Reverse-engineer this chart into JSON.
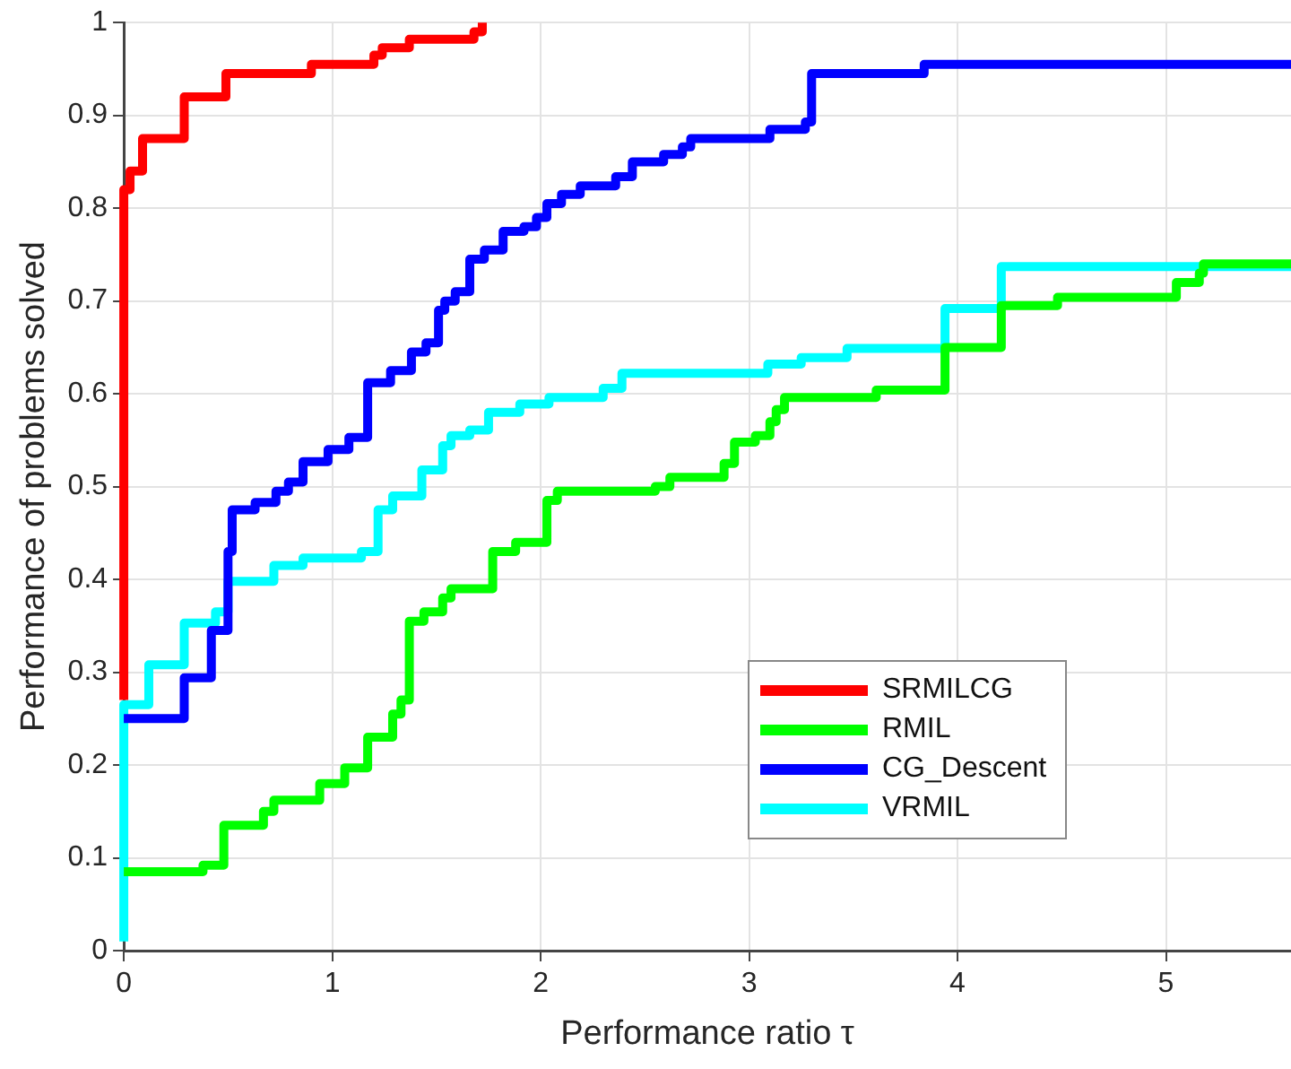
{
  "chart_data": {
    "type": "step",
    "xlabel": "Performance ratio τ",
    "ylabel": "Performance of problems solved",
    "xlim": [
      0,
      5.6
    ],
    "xticks": [
      0,
      1,
      2,
      3,
      4,
      5
    ],
    "ylim": [
      0,
      1
    ],
    "yticks": [
      0,
      0.1,
      0.2,
      0.3,
      0.4,
      0.5,
      0.6,
      0.7,
      0.8,
      0.9,
      1
    ],
    "grid": true,
    "legend": "bottom",
    "marker": "none",
    "line_style": "solid",
    "series": [
      {
        "name": "SRMILCG",
        "color": "#ff0000",
        "x": [
          0,
          0,
          0.03,
          0.09,
          0.29,
          0.49,
          0.9,
          1.2,
          1.24,
          1.37,
          1.68,
          1.72
        ],
        "values": [
          0.27,
          0.82,
          0.84,
          0.875,
          0.92,
          0.945,
          0.955,
          0.965,
          0.973,
          0.982,
          0.99,
          1
        ]
      },
      {
        "name": "RMIL",
        "color": "#00ff00",
        "x": [
          0,
          0.38,
          0.48,
          0.67,
          0.72,
          0.94,
          1.06,
          1.17,
          1.29,
          1.33,
          1.37,
          1.44,
          1.53,
          1.57,
          1.77,
          1.88,
          2.03,
          2.08,
          2.55,
          2.62,
          2.88,
          2.93,
          3.03,
          3.1,
          3.13,
          3.17,
          3.61,
          3.94,
          4.21,
          4.48,
          5.05,
          5.16,
          5.18,
          5.6
        ],
        "values": [
          0.085,
          0.092,
          0.135,
          0.15,
          0.162,
          0.18,
          0.197,
          0.23,
          0.255,
          0.27,
          0.355,
          0.365,
          0.38,
          0.39,
          0.43,
          0.44,
          0.485,
          0.495,
          0.5,
          0.51,
          0.525,
          0.548,
          0.555,
          0.57,
          0.583,
          0.596,
          0.604,
          0.65,
          0.695,
          0.704,
          0.72,
          0.73,
          0.74,
          0.74
        ]
      },
      {
        "name": "CG_Descent",
        "color": "#0000ff",
        "x": [
          0,
          0.29,
          0.42,
          0.5,
          0.52,
          0.63,
          0.73,
          0.79,
          0.86,
          0.98,
          1.08,
          1.17,
          1.28,
          1.38,
          1.45,
          1.51,
          1.54,
          1.59,
          1.66,
          1.73,
          1.82,
          1.92,
          1.98,
          2.03,
          2.1,
          2.19,
          2.36,
          2.44,
          2.59,
          2.68,
          2.72,
          3.1,
          3.27,
          3.3,
          3.84,
          5.6
        ],
        "values": [
          0.25,
          0.294,
          0.345,
          0.43,
          0.475,
          0.483,
          0.495,
          0.505,
          0.527,
          0.54,
          0.553,
          0.612,
          0.625,
          0.645,
          0.655,
          0.69,
          0.7,
          0.71,
          0.745,
          0.755,
          0.775,
          0.78,
          0.79,
          0.805,
          0.815,
          0.824,
          0.834,
          0.85,
          0.858,
          0.866,
          0.875,
          0.885,
          0.893,
          0.945,
          0.955,
          0.955
        ]
      },
      {
        "name": "VRMIL",
        "color": "#00ffff",
        "x": [
          0,
          0,
          0.12,
          0.29,
          0.44,
          0.5,
          0.72,
          0.86,
          1.14,
          1.22,
          1.29,
          1.43,
          1.53,
          1.57,
          1.66,
          1.75,
          1.9,
          2.04,
          2.3,
          2.39,
          3.09,
          3.25,
          3.47,
          3.94,
          4.21,
          5.6
        ],
        "values": [
          0.01,
          0.265,
          0.308,
          0.353,
          0.365,
          0.398,
          0.415,
          0.423,
          0.43,
          0.475,
          0.49,
          0.518,
          0.544,
          0.555,
          0.561,
          0.58,
          0.589,
          0.596,
          0.606,
          0.622,
          0.632,
          0.639,
          0.649,
          0.692,
          0.737,
          0.74
        ]
      }
    ]
  }
}
